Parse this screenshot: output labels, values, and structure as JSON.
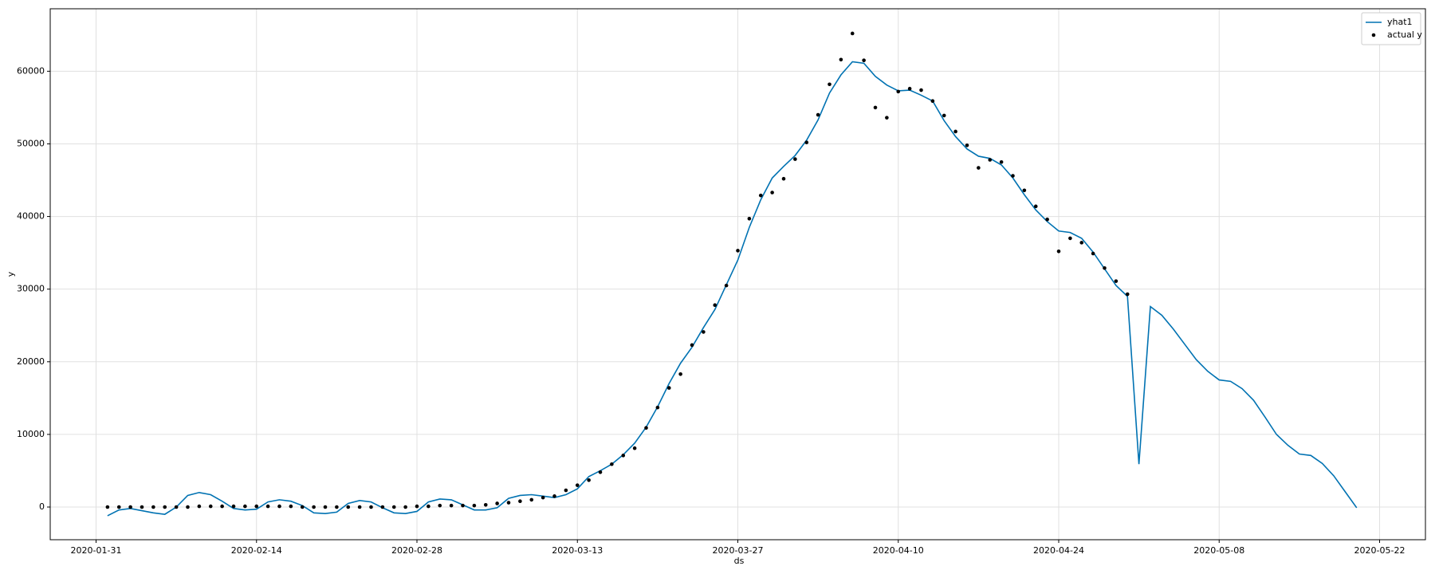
{
  "chart_data": {
    "type": "line",
    "xlabel": "ds",
    "ylabel": "y",
    "x": [
      "2020-02-01",
      "2020-02-02",
      "2020-02-03",
      "2020-02-04",
      "2020-02-05",
      "2020-02-06",
      "2020-02-07",
      "2020-02-08",
      "2020-02-09",
      "2020-02-10",
      "2020-02-11",
      "2020-02-12",
      "2020-02-13",
      "2020-02-14",
      "2020-02-15",
      "2020-02-16",
      "2020-02-17",
      "2020-02-18",
      "2020-02-19",
      "2020-02-20",
      "2020-02-21",
      "2020-02-22",
      "2020-02-23",
      "2020-02-24",
      "2020-02-25",
      "2020-02-26",
      "2020-02-27",
      "2020-02-28",
      "2020-02-29",
      "2020-03-01",
      "2020-03-02",
      "2020-03-03",
      "2020-03-04",
      "2020-03-05",
      "2020-03-06",
      "2020-03-07",
      "2020-03-08",
      "2020-03-09",
      "2020-03-10",
      "2020-03-11",
      "2020-03-12",
      "2020-03-13",
      "2020-03-14",
      "2020-03-15",
      "2020-03-16",
      "2020-03-17",
      "2020-03-18",
      "2020-03-19",
      "2020-03-20",
      "2020-03-21",
      "2020-03-22",
      "2020-03-23",
      "2020-03-24",
      "2020-03-25",
      "2020-03-26",
      "2020-03-27",
      "2020-03-28",
      "2020-03-29",
      "2020-03-30",
      "2020-03-31",
      "2020-04-01",
      "2020-04-02",
      "2020-04-03",
      "2020-04-04",
      "2020-04-05",
      "2020-04-06",
      "2020-04-07",
      "2020-04-08",
      "2020-04-09",
      "2020-04-10",
      "2020-04-11",
      "2020-04-12",
      "2020-04-13",
      "2020-04-14",
      "2020-04-15",
      "2020-04-16",
      "2020-04-17",
      "2020-04-18",
      "2020-04-19",
      "2020-04-20",
      "2020-04-21",
      "2020-04-22",
      "2020-04-23",
      "2020-04-24",
      "2020-04-25",
      "2020-04-26",
      "2020-04-27",
      "2020-04-28",
      "2020-04-29",
      "2020-04-30",
      "2020-05-01",
      "2020-05-02",
      "2020-05-03",
      "2020-05-04",
      "2020-05-05",
      "2020-05-06",
      "2020-05-07",
      "2020-05-08",
      "2020-05-09",
      "2020-05-10",
      "2020-05-11",
      "2020-05-12",
      "2020-05-13",
      "2020-05-14",
      "2020-05-15",
      "2020-05-16",
      "2020-05-17",
      "2020-05-18",
      "2020-05-19",
      "2020-05-20"
    ],
    "series": [
      {
        "name": "yhat1",
        "color": "#0072B2",
        "style": "line",
        "values": [
          -1200,
          -400,
          -200,
          -500,
          -800,
          -1000,
          0,
          1600,
          2000,
          1700,
          800,
          -200,
          -400,
          -300,
          700,
          1000,
          800,
          200,
          -800,
          -900,
          -700,
          500,
          900,
          700,
          -100,
          -800,
          -900,
          -600,
          700,
          1100,
          1000,
          300,
          -400,
          -400,
          -100,
          1200,
          1600,
          1700,
          1500,
          1300,
          1700,
          2500,
          4200,
          5000,
          5900,
          7200,
          8800,
          11000,
          13800,
          17000,
          19800,
          22000,
          24700,
          27200,
          30600,
          34000,
          38500,
          42300,
          45300,
          46900,
          48400,
          50500,
          53300,
          57000,
          59500,
          61300,
          61100,
          59300,
          58100,
          57300,
          57400,
          56700,
          55900,
          53200,
          51000,
          49300,
          48300,
          48000,
          47100,
          45300,
          43000,
          40900,
          39300,
          38000,
          37800,
          37000,
          35100,
          32800,
          30500,
          29000,
          5900,
          27600,
          26400,
          24500,
          22400,
          20300,
          18700,
          17500,
          17300,
          16300,
          14700,
          12400,
          10000,
          8500,
          7300,
          7100,
          6000,
          4300,
          2100,
          -100
        ]
      },
      {
        "name": "actual y",
        "color": "#000000",
        "style": "dot",
        "values": [
          0,
          0,
          0,
          0,
          0,
          0,
          0,
          0,
          100,
          100,
          100,
          100,
          100,
          100,
          100,
          100,
          100,
          0,
          0,
          0,
          0,
          0,
          0,
          0,
          0,
          0,
          0,
          100,
          100,
          200,
          200,
          200,
          200,
          300,
          500,
          600,
          800,
          1000,
          1300,
          1500,
          2300,
          3000,
          3700,
          4800,
          5900,
          7100,
          8100,
          10900,
          13700,
          16400,
          18300,
          22300,
          24100,
          27800,
          30500,
          35300,
          39700,
          42900,
          43300,
          45200,
          47900,
          50200,
          54000,
          58200,
          61600,
          65200,
          61500,
          55000,
          53600,
          57200,
          57600,
          57400,
          55900,
          53900,
          51700,
          49800,
          46700,
          47800,
          47500,
          45600,
          43600,
          41400,
          39600,
          35200,
          37000,
          36400,
          34900,
          32900,
          31100,
          29300,
          null,
          null,
          null,
          null,
          null,
          null,
          null,
          null,
          null,
          null,
          null,
          null,
          null,
          null,
          null,
          null,
          null,
          null,
          null,
          null
        ]
      }
    ],
    "xlim": [
      "2020-01-27",
      "2020-05-26"
    ],
    "xticks": [
      "2020-01-31",
      "2020-02-14",
      "2020-02-28",
      "2020-03-13",
      "2020-03-27",
      "2020-04-10",
      "2020-04-24",
      "2020-05-08",
      "2020-05-22"
    ],
    "ylim": [
      -4500,
      68600
    ],
    "yticks": [
      0,
      10000,
      20000,
      30000,
      40000,
      50000,
      60000
    ],
    "grid": true,
    "legend": "upper right"
  }
}
